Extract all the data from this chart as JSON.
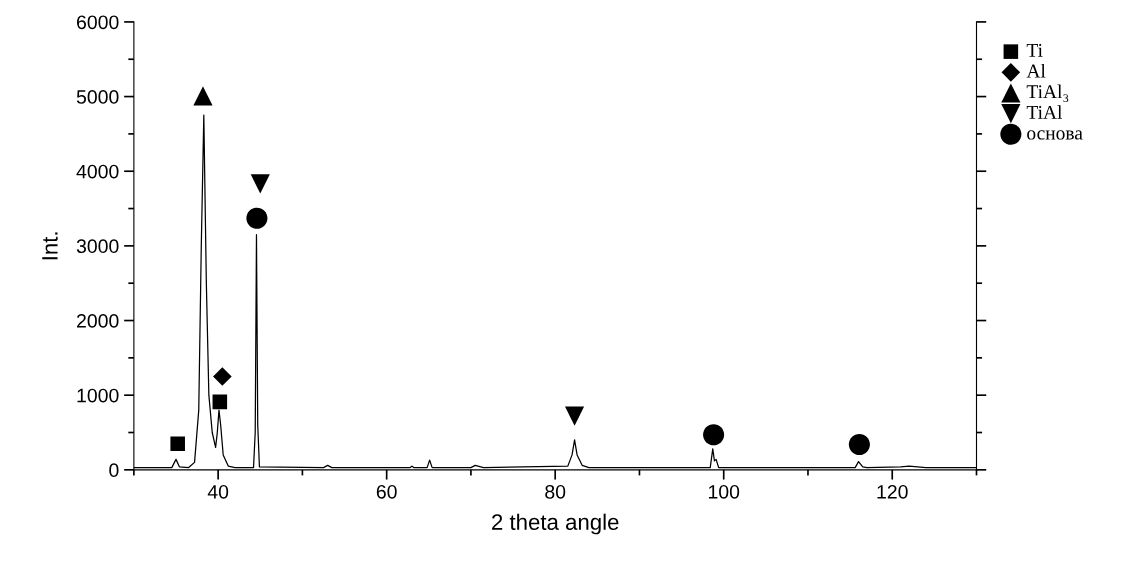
{
  "chart_data": {
    "type": "line",
    "xlabel": "2 theta angle",
    "ylabel": "Int.",
    "xlim": [
      30,
      130
    ],
    "xticks": [
      40,
      60,
      80,
      100,
      120
    ],
    "ylim": [
      0,
      6000
    ],
    "yticks": [
      0,
      1000,
      2000,
      3000,
      4000,
      5000,
      6000
    ],
    "grid": false,
    "legend": "right",
    "series": [
      {
        "color": "#000000",
        "marker": "none",
        "x": [
          30,
          34.5,
          35.0,
          35.4,
          36.5,
          37.2,
          37.7,
          38.0,
          38.3,
          38.6,
          38.9,
          39.3,
          39.7,
          39.9,
          40.1,
          40.3,
          40.6,
          41.2,
          42,
          44.2,
          44.4,
          44.55,
          44.7,
          44.9,
          52.5,
          53,
          53.5,
          62.8,
          63,
          63.2,
          64.8,
          65.1,
          65.4,
          70,
          70.5,
          71.5,
          81.5,
          82.0,
          82.3,
          82.6,
          83.2,
          84,
          98.4,
          98.7,
          98.9,
          99.1,
          99.4,
          115.6,
          116.0,
          116.5,
          117,
          121,
          122,
          124,
          130
        ],
        "values": [
          30,
          30,
          140,
          40,
          30,
          100,
          800,
          3000,
          4750,
          2500,
          1000,
          500,
          300,
          500,
          800,
          600,
          200,
          50,
          30,
          30,
          500,
          3150,
          600,
          40,
          30,
          60,
          30,
          30,
          50,
          30,
          30,
          130,
          30,
          30,
          60,
          30,
          50,
          200,
          400,
          200,
          60,
          30,
          30,
          280,
          120,
          140,
          30,
          30,
          110,
          40,
          30,
          40,
          50,
          30,
          30
        ]
      },
      {
        "type": "scatter",
        "name": "Ti",
        "color": "#000000",
        "marker": "square",
        "x": [
          35.2,
          40.2
        ],
        "values": [
          350,
          910
        ]
      },
      {
        "type": "scatter",
        "name": "Al",
        "color": "#000000",
        "marker": "diamond",
        "x": [
          40.5
        ],
        "values": [
          1250
        ]
      },
      {
        "type": "scatter",
        "name": "TiAl₃",
        "color": "#000000",
        "marker": "triangle",
        "x": [
          38.2
        ],
        "values": [
          5010
        ]
      },
      {
        "type": "scatter",
        "name": "TiAl",
        "color": "#000000",
        "marker": "triangle_down",
        "x": [
          45.0,
          82.3
        ],
        "values": [
          3830,
          720
        ]
      },
      {
        "type": "scatter",
        "name": "основа",
        "color": "#000000",
        "marker": "circle",
        "x": [
          44.6,
          98.8,
          116.1
        ],
        "values": [
          3370,
          470,
          340
        ]
      }
    ]
  }
}
